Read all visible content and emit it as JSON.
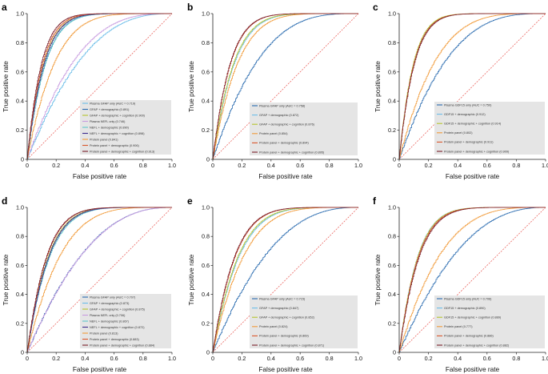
{
  "figure": {
    "colors": {
      "diagonal": "#e8534d",
      "legend_bg": "#e5e5e5",
      "axis": "#222222"
    }
  },
  "chart_data": [
    {
      "type": "line",
      "panel": "a",
      "xlabel": "False positive rate",
      "ylabel": "True positive rate",
      "xlim": [
        0,
        1
      ],
      "ylim": [
        0,
        1
      ],
      "xticks": [
        "0",
        "0.2",
        "0.4",
        "0.6",
        "0.8",
        "1.0"
      ],
      "yticks": [
        "0",
        "0.2",
        "0.4",
        "0.6",
        "0.8",
        "1.0"
      ],
      "legend_position": "bottom-right",
      "diagonal": true,
      "series": [
        {
          "name": "Plasma GFAP only (AUC = 0.719)",
          "color": "#6bbde8",
          "auc": 0.719
        },
        {
          "name": "GFAP + demographic (0.891)",
          "color": "#2b6cb0",
          "auc": 0.891
        },
        {
          "name": "GFAP + demographic + cognition (0.900)",
          "color": "#b5c42f",
          "auc": 0.9
        },
        {
          "name": "Plasma NEFL only (0.746)",
          "color": "#c79be0",
          "auc": 0.746
        },
        {
          "name": "NEFL + demographic (0.890)",
          "color": "#5cc6c9",
          "auc": 0.89
        },
        {
          "name": "NEFL + demographic + cognition (0.898)",
          "color": "#3d2b8f",
          "auc": 0.898
        },
        {
          "name": "Protein panel (0.841)",
          "color": "#f19a38",
          "auc": 0.841
        },
        {
          "name": "Protein panel + demographic (0.906)",
          "color": "#d9552b",
          "auc": 0.906
        },
        {
          "name": "Protein panel + demographic + cognition (0.913)",
          "color": "#7a1f2b",
          "auc": 0.913
        }
      ]
    },
    {
      "type": "line",
      "panel": "b",
      "xlabel": "False positive rate",
      "ylabel": "True positive rate",
      "xlim": [
        0,
        1
      ],
      "ylim": [
        0,
        1
      ],
      "xticks": [
        "0",
        "0.2",
        "0.4",
        "0.6",
        "0.8",
        "1.0"
      ],
      "yticks": [
        "0",
        "0.2",
        "0.4",
        "0.6",
        "0.8",
        "1.0"
      ],
      "legend_position": "bottom-right",
      "diagonal": true,
      "series": [
        {
          "name": "Plasma GFAP only (AUC = 0.758)",
          "color": "#2b6cb0",
          "auc": 0.758
        },
        {
          "name": "GFAP + demographic (0.872)",
          "color": "#6bbde8",
          "auc": 0.872
        },
        {
          "name": "GFAP + demographic + cognition (0.876)",
          "color": "#b5c42f",
          "auc": 0.876
        },
        {
          "name": "Protein panel (0.854)",
          "color": "#f19a38",
          "auc": 0.854
        },
        {
          "name": "Protein panel + demographic (0.894)",
          "color": "#d9552b",
          "auc": 0.894
        },
        {
          "name": "Protein panel + demographic + cognition (0.895)",
          "color": "#7a1f2b",
          "auc": 0.895
        }
      ]
    },
    {
      "type": "line",
      "panel": "c",
      "xlabel": "False positive rate",
      "ylabel": "True positive rate",
      "xlim": [
        0,
        1
      ],
      "ylim": [
        0,
        1
      ],
      "xticks": [
        "0",
        "0.2",
        "0.4",
        "0.6",
        "0.8",
        "1.0"
      ],
      "yticks": [
        "0",
        "0.2",
        "0.4",
        "0.6",
        "0.8",
        "1.0"
      ],
      "legend_position": "bottom-right",
      "diagonal": true,
      "series": [
        {
          "name": "Plasma GDF15 only (AUC = 0.750)",
          "color": "#2b6cb0",
          "auc": 0.75
        },
        {
          "name": "GDF15 + demographic (0.912)",
          "color": "#6bbde8",
          "auc": 0.912
        },
        {
          "name": "GDF15 + demographic + cognition (0.914)",
          "color": "#b5c42f",
          "auc": 0.914
        },
        {
          "name": "Protein panel (0.802)",
          "color": "#f19a38",
          "auc": 0.802
        },
        {
          "name": "Protein panel + demographic (0.911)",
          "color": "#d9552b",
          "auc": 0.911
        },
        {
          "name": "Protein panel + demographic + cognition (0.909)",
          "color": "#7a1f2b",
          "auc": 0.909
        }
      ]
    },
    {
      "type": "line",
      "panel": "d",
      "xlabel": "False positive rate",
      "ylabel": "True positive rate",
      "xlim": [
        0,
        1
      ],
      "ylim": [
        0,
        1
      ],
      "xticks": [
        "0",
        "0.2",
        "0.4",
        "0.6",
        "0.8",
        "1.0"
      ],
      "yticks": [
        "0",
        "0.2",
        "0.4",
        "0.6",
        "0.8",
        "1.0"
      ],
      "legend_position": "bottom-right",
      "diagonal": true,
      "series": [
        {
          "name": "Plasma GFAP only (AUC = 0.707)",
          "color": "#2b6cb0",
          "auc": 0.707
        },
        {
          "name": "GFAP + demographic (0.873)",
          "color": "#6bbde8",
          "auc": 0.873
        },
        {
          "name": "GFAP + demographic + cognition (0.875)",
          "color": "#b5c42f",
          "auc": 0.875
        },
        {
          "name": "Plasma NEFL only (0.706)",
          "color": "#c79be0",
          "auc": 0.706
        },
        {
          "name": "NEFL + demographic (0.867)",
          "color": "#5cc6c9",
          "auc": 0.867
        },
        {
          "name": "NEFL + demographic + cognition (0.872)",
          "color": "#3d2b8f",
          "auc": 0.872
        },
        {
          "name": "Protein panel (0.813)",
          "color": "#f19a38",
          "auc": 0.813
        },
        {
          "name": "Protein panel + demographic (0.883)",
          "color": "#d9552b",
          "auc": 0.883
        },
        {
          "name": "Protein panel + demographic + cognition (0.884)",
          "color": "#7a1f2b",
          "auc": 0.884
        }
      ]
    },
    {
      "type": "line",
      "panel": "e",
      "xlabel": "False positive rate",
      "ylabel": "True positive rate",
      "xlim": [
        0,
        1
      ],
      "ylim": [
        0,
        1
      ],
      "xticks": [
        "0",
        "0.2",
        "0.4",
        "0.6",
        "0.8",
        "1.0"
      ],
      "yticks": [
        "0",
        "0.2",
        "0.4",
        "0.6",
        "0.8",
        "1.0"
      ],
      "legend_position": "bottom-right",
      "diagonal": true,
      "series": [
        {
          "name": "Plasma GFAP only (AUC = 0.715)",
          "color": "#2b6cb0",
          "auc": 0.715
        },
        {
          "name": "GFAP + demographic (0.847)",
          "color": "#6bbde8",
          "auc": 0.847
        },
        {
          "name": "GFAP + demographic + cognition (0.852)",
          "color": "#b5c42f",
          "auc": 0.852
        },
        {
          "name": "Protein panel (0.824)",
          "color": "#f19a38",
          "auc": 0.824
        },
        {
          "name": "Protein panel + demographic (0.869)",
          "color": "#d9552b",
          "auc": 0.869
        },
        {
          "name": "Protein panel + demographic + cognition (0.871)",
          "color": "#7a1f2b",
          "auc": 0.871
        }
      ]
    },
    {
      "type": "line",
      "panel": "f",
      "xlabel": "False positive rate",
      "ylabel": "True positive rate",
      "xlim": [
        0,
        1
      ],
      "ylim": [
        0,
        1
      ],
      "xticks": [
        "0",
        "0.2",
        "0.4",
        "0.6",
        "0.8",
        "1.0"
      ],
      "yticks": [
        "0",
        "0.2",
        "0.4",
        "0.6",
        "0.8",
        "1.0"
      ],
      "legend_position": "bottom-right",
      "diagonal": true,
      "series": [
        {
          "name": "Plasma GDF15 only (AUC = 0.706)",
          "color": "#2b6cb0",
          "auc": 0.706
        },
        {
          "name": "GDF15 + demographic (0.890)",
          "color": "#6bbde8",
          "auc": 0.89
        },
        {
          "name": "GDF15 + demographic + cognition (0.889)",
          "color": "#b5c42f",
          "auc": 0.889
        },
        {
          "name": "Protein panel (0.777)",
          "color": "#f19a38",
          "auc": 0.777
        },
        {
          "name": "Protein panel + demographic (0.886)",
          "color": "#d9552b",
          "auc": 0.886
        },
        {
          "name": "Protein panel + demographic + cognition (0.882)",
          "color": "#7a1f2b",
          "auc": 0.882
        }
      ]
    }
  ]
}
